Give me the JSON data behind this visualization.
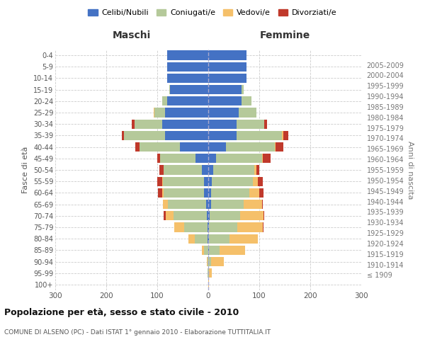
{
  "age_groups": [
    "100+",
    "95-99",
    "90-94",
    "85-89",
    "80-84",
    "75-79",
    "70-74",
    "65-69",
    "60-64",
    "55-59",
    "50-54",
    "45-49",
    "40-44",
    "35-39",
    "30-34",
    "25-29",
    "20-24",
    "15-19",
    "10-14",
    "5-9",
    "0-4"
  ],
  "birth_years": [
    "≤ 1909",
    "1910-1914",
    "1915-1919",
    "1920-1924",
    "1925-1929",
    "1930-1934",
    "1935-1939",
    "1940-1944",
    "1945-1949",
    "1950-1954",
    "1955-1959",
    "1960-1964",
    "1965-1969",
    "1970-1974",
    "1975-1979",
    "1980-1984",
    "1985-1989",
    "1990-1994",
    "1995-1999",
    "2000-2004",
    "2005-2009"
  ],
  "males": {
    "celibi": [
      0,
      0,
      0,
      0,
      2,
      2,
      3,
      4,
      8,
      9,
      12,
      25,
      55,
      85,
      90,
      85,
      80,
      75,
      80,
      80,
      80
    ],
    "coniugati": [
      0,
      1,
      2,
      8,
      25,
      45,
      65,
      75,
      80,
      80,
      75,
      70,
      80,
      80,
      55,
      20,
      10,
      2,
      0,
      0,
      0
    ],
    "vedovi": [
      0,
      0,
      1,
      5,
      12,
      20,
      15,
      10,
      2,
      1,
      1,
      0,
      0,
      0,
      0,
      2,
      0,
      0,
      0,
      0,
      0
    ],
    "divorziati": [
      0,
      0,
      0,
      0,
      0,
      0,
      5,
      0,
      8,
      10,
      8,
      5,
      8,
      5,
      5,
      0,
      0,
      0,
      0,
      0,
      0
    ]
  },
  "females": {
    "nubili": [
      0,
      0,
      0,
      2,
      2,
      2,
      3,
      5,
      5,
      7,
      10,
      15,
      35,
      55,
      55,
      60,
      65,
      65,
      75,
      75,
      75
    ],
    "coniugate": [
      0,
      2,
      5,
      20,
      40,
      55,
      60,
      65,
      75,
      80,
      80,
      90,
      95,
      90,
      55,
      35,
      20,
      5,
      0,
      0,
      0
    ],
    "vedove": [
      1,
      5,
      25,
      50,
      55,
      50,
      45,
      35,
      20,
      10,
      5,
      2,
      2,
      2,
      0,
      0,
      0,
      0,
      0,
      0,
      0
    ],
    "divorziate": [
      0,
      0,
      0,
      0,
      0,
      2,
      2,
      2,
      8,
      10,
      5,
      15,
      15,
      10,
      5,
      0,
      0,
      0,
      0,
      0,
      0
    ]
  },
  "colors": {
    "celibi": "#4472c4",
    "coniugati": "#b5c99a",
    "vedovi": "#f5c06a",
    "divorziati": "#c0392b"
  },
  "title": "Popolazione per età, sesso e stato civile - 2010",
  "subtitle": "COMUNE DI ALSENO (PC) - Dati ISTAT 1° gennaio 2010 - Elaborazione TUTTITALIA.IT",
  "xlabel_left": "Maschi",
  "xlabel_right": "Femmine",
  "ylabel_left": "Fasce di età",
  "ylabel_right": "Anni di nascita",
  "xlim": 300,
  "background_color": "#ffffff",
  "grid_color": "#cccccc",
  "legend_labels": [
    "Celibi/Nubili",
    "Coniugati/e",
    "Vedovi/e",
    "Divorziati/e"
  ]
}
